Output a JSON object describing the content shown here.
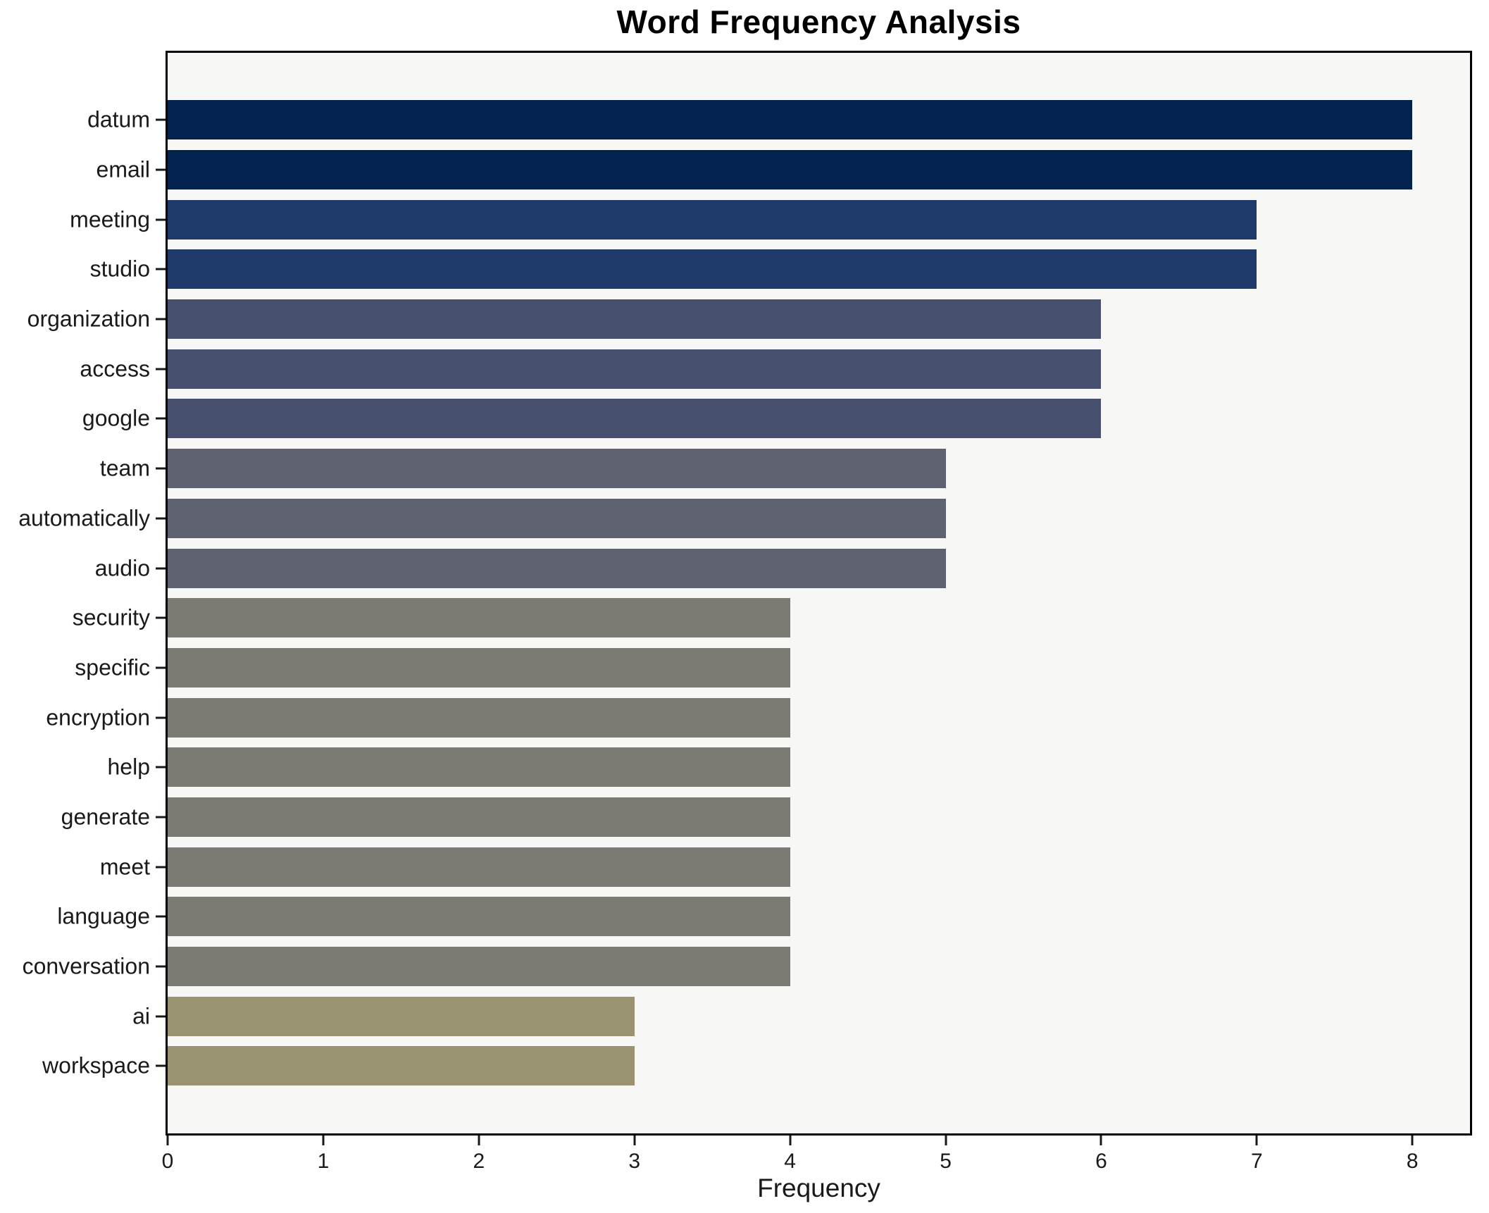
{
  "chart_data": {
    "type": "bar",
    "orientation": "horizontal",
    "title": "Word Frequency Analysis",
    "xlabel": "Frequency",
    "ylabel": "",
    "grid": false,
    "legend": false,
    "xlim": [
      0,
      8.37
    ],
    "x_ticks": [
      0,
      1,
      2,
      3,
      4,
      5,
      6,
      7,
      8
    ],
    "plot_background": "#f7f7f6",
    "figure_background": "#ffffff",
    "categories": [
      "datum",
      "email",
      "meeting",
      "studio",
      "organization",
      "access",
      "google",
      "team",
      "automatically",
      "audio",
      "security",
      "specific",
      "encryption",
      "help",
      "generate",
      "meet",
      "language",
      "conversation",
      "ai",
      "workspace"
    ],
    "values": [
      8,
      8,
      7,
      7,
      6,
      6,
      6,
      5,
      5,
      5,
      4,
      4,
      4,
      4,
      4,
      4,
      4,
      4,
      3,
      3
    ],
    "bar_colors": [
      "#03224d",
      "#03224d",
      "#1d3a6b",
      "#1d3a6b",
      "#46506e",
      "#46506e",
      "#46506e",
      "#5e6271",
      "#5e6271",
      "#5e6271",
      "#7b7a73",
      "#7b7a73",
      "#7b7a73",
      "#7b7a73",
      "#7b7a73",
      "#7b7a73",
      "#7b7a73",
      "#7b7a73",
      "#9a9372",
      "#9a9372"
    ],
    "value_color_map": {
      "8": "#03224d",
      "7": "#1d3a6b",
      "6": "#46506e",
      "5": "#5e6271",
      "4": "#7b7a73",
      "3": "#9a9372"
    }
  }
}
